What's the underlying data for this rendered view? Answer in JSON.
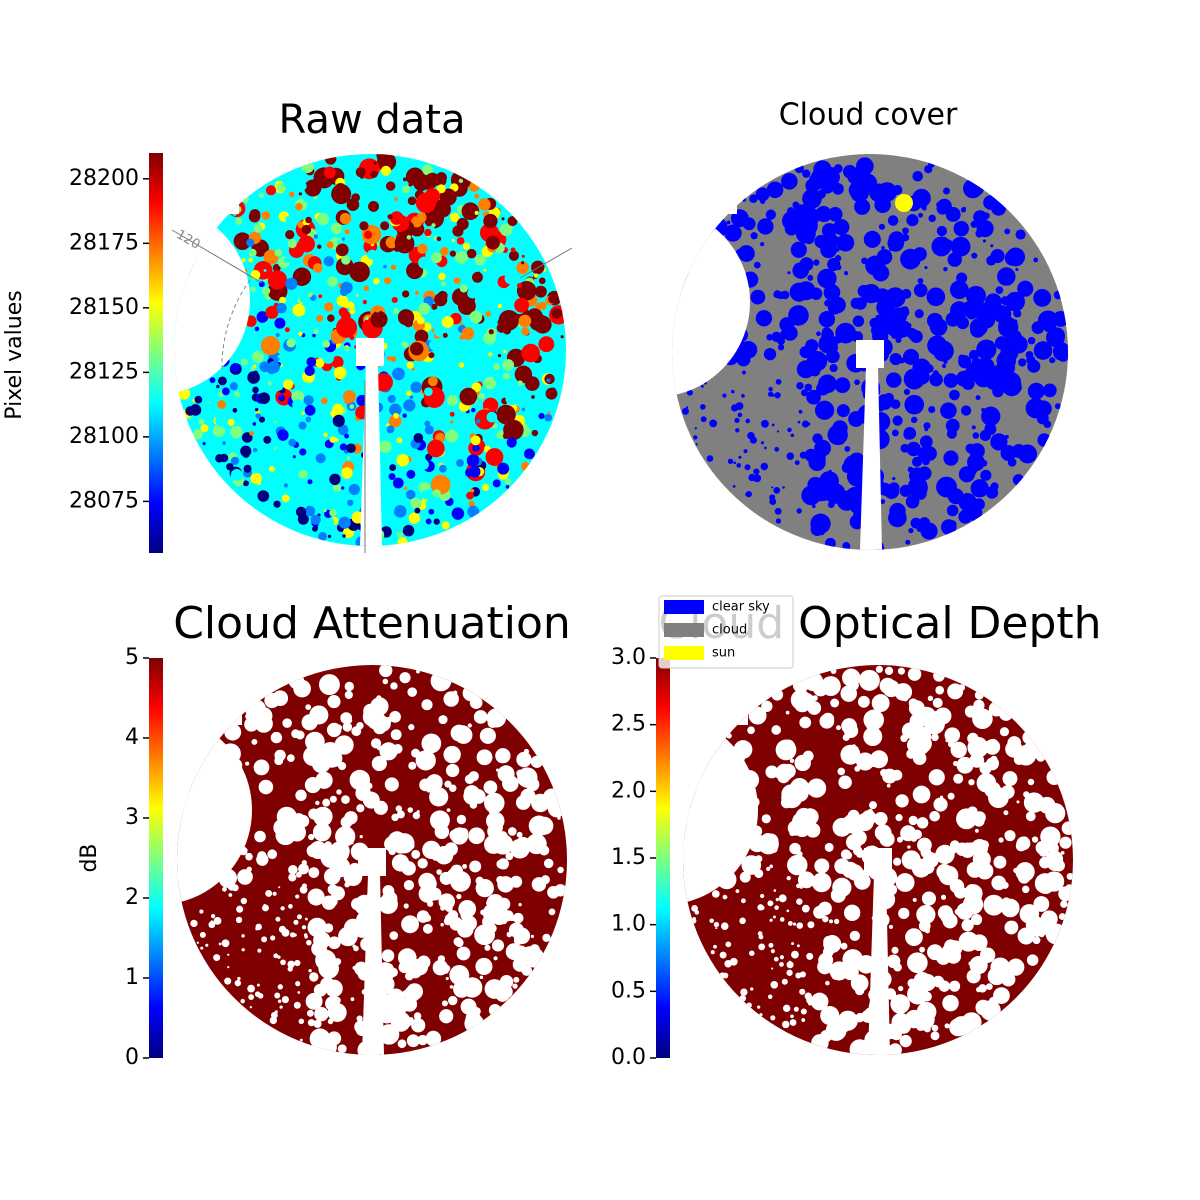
{
  "chart_data": [
    {
      "type": "image",
      "title": "Raw data",
      "colormap": [
        "#00007f",
        "#0000ff",
        "#007fff",
        "#00ffff",
        "#7fff7f",
        "#ffff00",
        "#ff7f00",
        "#ff0000",
        "#7f0000"
      ],
      "colorbar": {
        "ylabel": "Pixel values",
        "ylim": [
          28055,
          28210
        ],
        "yticks": [
          28075,
          28100,
          28125,
          28150,
          28175,
          28200
        ]
      },
      "annotations": [
        "120"
      ]
    },
    {
      "type": "image",
      "title": "Cloud cover",
      "legend": {
        "series": [
          {
            "name": "clear sky",
            "color": "#0000ff"
          },
          {
            "name": "cloud",
            "color": "#808080"
          },
          {
            "name": "sun",
            "color": "#ffff00"
          }
        ]
      }
    },
    {
      "type": "image",
      "title": "Cloud Attenuation",
      "colormap": [
        "#00007f",
        "#0000ff",
        "#007fff",
        "#00ffff",
        "#7fff7f",
        "#ffff00",
        "#ff7f00",
        "#ff0000",
        "#7f0000"
      ],
      "colorbar": {
        "ylabel": "dB",
        "ylim": [
          0,
          5
        ],
        "yticks": [
          0,
          1,
          2,
          3,
          4,
          5
        ]
      }
    },
    {
      "type": "image",
      "title": "Cloud Optical Depth",
      "colormap": [
        "#00007f",
        "#0000ff",
        "#007fff",
        "#00ffff",
        "#7fff7f",
        "#ffff00",
        "#ff7f00",
        "#ff0000",
        "#7f0000"
      ],
      "colorbar": {
        "ylim": [
          0,
          3
        ],
        "yticks": [
          {
            "value": 0,
            "label": "0.0"
          },
          0.5,
          {
            "value": 1,
            "label": "1.0"
          },
          1.5,
          {
            "value": 2,
            "label": "2.0"
          },
          2.5,
          {
            "value": 3,
            "label": "3.0"
          }
        ]
      }
    }
  ]
}
